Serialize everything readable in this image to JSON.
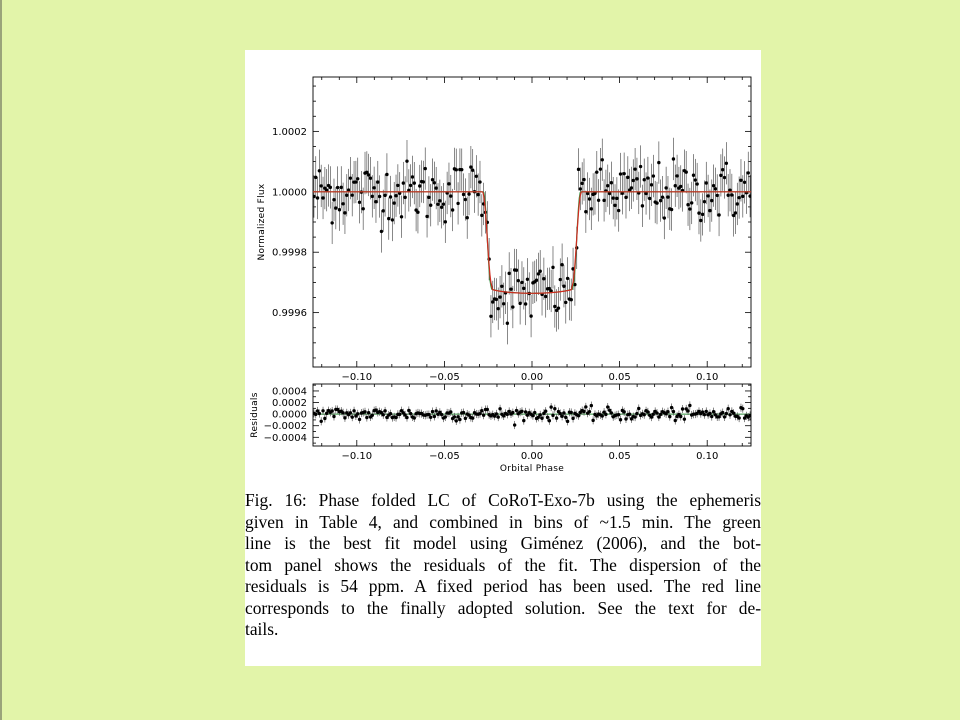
{
  "slide": {
    "background": "#e2f4a9"
  },
  "figure": {
    "caption_lines": [
      "Fig. 16: Phase folded LC of CoRoT-Exo-7b using the ephemeris",
      "given in Table 4, and combined in bins of ~1.5 min. The green",
      "line is the best fit model using Giménez (2006), and the bot-",
      "tom panel shows the residuals of the fit. The dispersion of the",
      "residuals is 54 ppm. A fixed period has been used. The red line",
      "corresponds to the finally adopted solution. See the text for de-",
      "tails."
    ]
  },
  "chart_data": [
    {
      "type": "scatter",
      "panel": "top",
      "ylabel": "Normalized Flux",
      "xlabel": "",
      "xlim": [
        -0.125,
        0.125
      ],
      "ylim": [
        0.99942,
        1.00038
      ],
      "xticks": [
        -0.1,
        -0.05,
        0.0,
        0.05,
        0.1
      ],
      "xtick_labels": [
        "−0.10",
        "−0.05",
        "0.00",
        "0.05",
        "0.10"
      ],
      "yticks": [
        0.9996,
        0.9998,
        1.0,
        1.0002
      ],
      "ytick_labels": [
        "0.9996",
        "0.9998",
        "1.0000",
        "1.0002"
      ],
      "series": [
        {
          "role": "binned data with error bars",
          "color": "#000000",
          "n_points": 240,
          "errorbar": 7e-05,
          "scatter": 5e-05
        },
        {
          "role": "best fit model (Giménez 2006)",
          "color": "#2f8f3a",
          "model": {
            "baseline": 1.0,
            "depth": 0.000336,
            "t14": 0.0555,
            "t23": 0.0465
          }
        },
        {
          "role": "finally adopted solution",
          "color": "#d02a1f",
          "model": {
            "baseline": 1.0,
            "depth": 0.000336,
            "t14": 0.0565,
            "t23": 0.0455
          }
        }
      ],
      "grid": false
    },
    {
      "type": "scatter",
      "panel": "bottom",
      "ylabel": "Residuals",
      "xlabel": "Orbital Phase",
      "xlim": [
        -0.125,
        0.125
      ],
      "ylim": [
        -0.00055,
        0.00052
      ],
      "xticks": [
        -0.1,
        -0.05,
        0.0,
        0.05,
        0.1
      ],
      "xtick_labels": [
        "−0.10",
        "−0.05",
        "0.00",
        "0.05",
        "0.10"
      ],
      "yticks": [
        0.0004,
        0.0002,
        0.0,
        -0.0002,
        -0.0004
      ],
      "ytick_labels": [
        "0.0004",
        "0.0002",
        "0.0000",
        "−0.0002",
        "−0.0004"
      ],
      "series": [
        {
          "role": "residuals",
          "color": "#000000",
          "n_points": 240,
          "errorbar": 7e-05,
          "scatter": 5.4e-05,
          "zero_line_color": "#2f8f3a"
        }
      ],
      "grid": false
    }
  ]
}
